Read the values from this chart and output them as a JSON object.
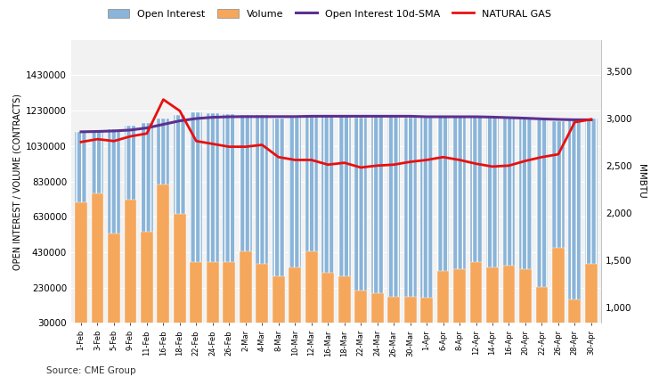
{
  "dates": [
    "1-Feb",
    "3-Feb",
    "5-Feb",
    "9-Feb",
    "11-Feb",
    "16-Feb",
    "18-Feb",
    "22-Feb",
    "24-Feb",
    "26-Feb",
    "2-Mar",
    "4-Mar",
    "8-Mar",
    "10-Mar",
    "12-Mar",
    "16-Mar",
    "18-Mar",
    "22-Mar",
    "24-Mar",
    "26-Mar",
    "30-Mar",
    "1-Apr",
    "6-Apr",
    "8-Apr",
    "12-Apr",
    "14-Apr",
    "16-Apr",
    "20-Apr",
    "22-Apr",
    "26-Apr",
    "28-Apr",
    "30-Apr"
  ],
  "open_interest": [
    1110000,
    1120000,
    1125000,
    1145000,
    1160000,
    1185000,
    1205000,
    1220000,
    1215000,
    1210000,
    1205000,
    1205000,
    1185000,
    1190000,
    1195000,
    1195000,
    1200000,
    1190000,
    1195000,
    1195000,
    1190000,
    1190000,
    1195000,
    1195000,
    1195000,
    1190000,
    1190000,
    1185000,
    1178000,
    1172000,
    1178000,
    1185000
  ],
  "volume": [
    710000,
    760000,
    535000,
    725000,
    545000,
    810000,
    645000,
    375000,
    375000,
    375000,
    435000,
    365000,
    295000,
    345000,
    435000,
    315000,
    295000,
    215000,
    200000,
    180000,
    180000,
    175000,
    325000,
    335000,
    375000,
    345000,
    355000,
    335000,
    235000,
    455000,
    165000,
    365000
  ],
  "sma10": [
    1110000,
    1112000,
    1115000,
    1120000,
    1132000,
    1152000,
    1172000,
    1185000,
    1192000,
    1195000,
    1196000,
    1196000,
    1196000,
    1196000,
    1198000,
    1198000,
    1198000,
    1198000,
    1198000,
    1198000,
    1198000,
    1195000,
    1195000,
    1195000,
    1195000,
    1193000,
    1190000,
    1187000,
    1183000,
    1180000,
    1178000,
    1178000
  ],
  "nat_gas": [
    2750,
    2780,
    2760,
    2810,
    2840,
    3200,
    3080,
    2760,
    2730,
    2700,
    2700,
    2720,
    2590,
    2560,
    2560,
    2510,
    2530,
    2480,
    2500,
    2510,
    2540,
    2560,
    2590,
    2560,
    2520,
    2490,
    2500,
    2550,
    2590,
    2620,
    2960,
    2990
  ],
  "bar_color_oi": "#8ab4d8",
  "bar_color_vol": "#f5a75c",
  "line_color_sma": "#5c3090",
  "line_color_ng": "#e81010",
  "ylabel_left": "OPEN INTEREST / VOLUME (CONTRACTS)",
  "ylabel_right": "MMBTU",
  "ylim_left": [
    30000,
    1630000
  ],
  "ylim_right": [
    833,
    3833
  ],
  "yticks_left": [
    30000,
    230000,
    430000,
    630000,
    830000,
    1030000,
    1230000,
    1430000
  ],
  "yticks_right": [
    1000,
    1500,
    2000,
    2500,
    3000,
    3500
  ],
  "source": "Source: CME Group",
  "chart_bg": "#f2f2f2"
}
